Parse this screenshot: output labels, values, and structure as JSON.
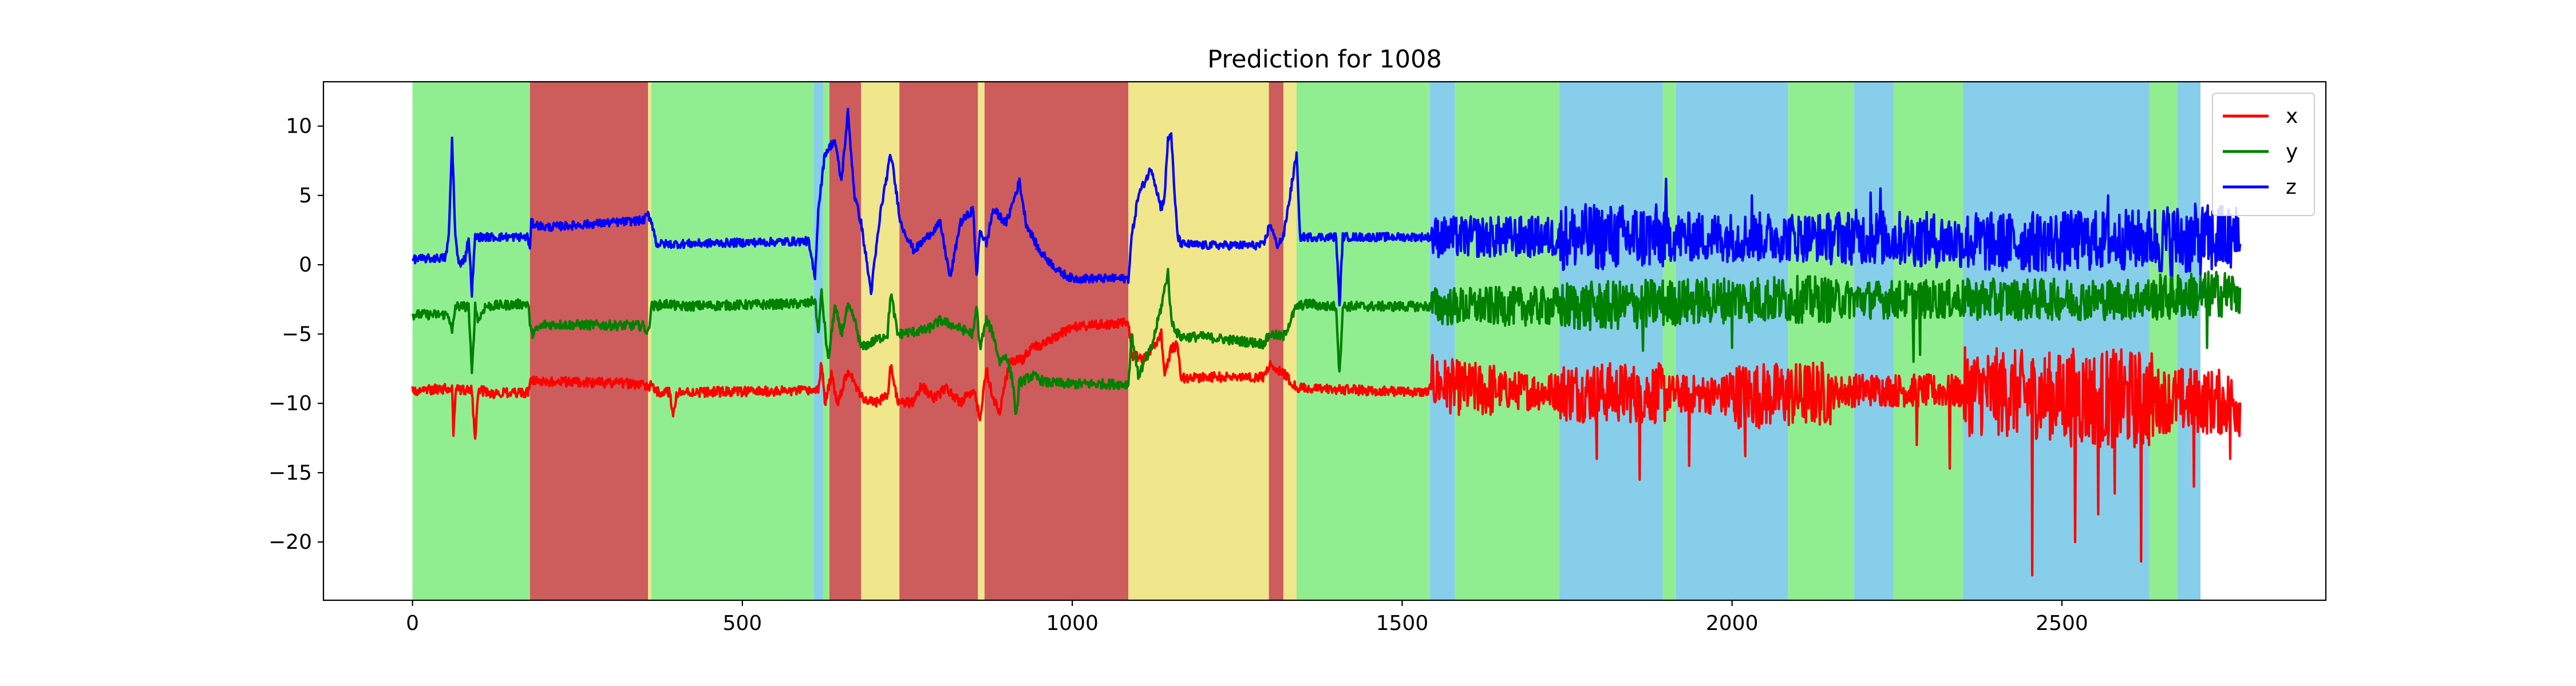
{
  "chart_data": {
    "type": "line",
    "title": "Prediction for 1008",
    "xlabel": "",
    "ylabel": "",
    "xlim": [
      -135,
      2900
    ],
    "ylim": [
      -24.2,
      13.2
    ],
    "xticks": [
      0,
      500,
      1000,
      1500,
      2000,
      2500
    ],
    "yticks": [
      10,
      5,
      0,
      -5,
      -10,
      -15,
      -20
    ],
    "grid": false,
    "legend_position": "top-right",
    "background_segments": [
      {
        "start": 0,
        "end": 178,
        "color": "#90ee90"
      },
      {
        "start": 178,
        "end": 357,
        "color": "#cd5c5c"
      },
      {
        "start": 357,
        "end": 362,
        "color": "#f0e68c"
      },
      {
        "start": 362,
        "end": 608,
        "color": "#90ee90"
      },
      {
        "start": 608,
        "end": 622,
        "color": "#87ceeb"
      },
      {
        "start": 622,
        "end": 632,
        "color": "#90ee90"
      },
      {
        "start": 632,
        "end": 680,
        "color": "#cd5c5c"
      },
      {
        "start": 680,
        "end": 738,
        "color": "#f0e68c"
      },
      {
        "start": 738,
        "end": 857,
        "color": "#cd5c5c"
      },
      {
        "start": 857,
        "end": 867,
        "color": "#f0e68c"
      },
      {
        "start": 867,
        "end": 1085,
        "color": "#cd5c5c"
      },
      {
        "start": 1085,
        "end": 1298,
        "color": "#f0e68c"
      },
      {
        "start": 1298,
        "end": 1320,
        "color": "#cd5c5c"
      },
      {
        "start": 1320,
        "end": 1340,
        "color": "#f0e68c"
      },
      {
        "start": 1340,
        "end": 1542,
        "color": "#90ee90"
      },
      {
        "start": 1542,
        "end": 1580,
        "color": "#87ceeb"
      },
      {
        "start": 1580,
        "end": 1738,
        "color": "#90ee90"
      },
      {
        "start": 1738,
        "end": 1895,
        "color": "#87ceeb"
      },
      {
        "start": 1895,
        "end": 1915,
        "color": "#90ee90"
      },
      {
        "start": 1915,
        "end": 2085,
        "color": "#87ceeb"
      },
      {
        "start": 2085,
        "end": 2185,
        "color": "#90ee90"
      },
      {
        "start": 2185,
        "end": 2245,
        "color": "#87ceeb"
      },
      {
        "start": 2245,
        "end": 2350,
        "color": "#90ee90"
      },
      {
        "start": 2350,
        "end": 2633,
        "color": "#87ceeb"
      },
      {
        "start": 2633,
        "end": 2675,
        "color": "#90ee90"
      },
      {
        "start": 2675,
        "end": 2710,
        "color": "#87ceeb"
      }
    ],
    "x_range": [
      0,
      2770
    ],
    "series": [
      {
        "name": "x",
        "color": "#ff0000",
        "noise": 0.35,
        "points": [
          [
            0,
            -9.1
          ],
          [
            60,
            -8.9
          ],
          [
            62,
            -12
          ],
          [
            66,
            -9
          ],
          [
            90,
            -9
          ],
          [
            95,
            -12.8
          ],
          [
            100,
            -9
          ],
          [
            120,
            -9.3
          ],
          [
            175,
            -9.2
          ],
          [
            180,
            -8.4
          ],
          [
            200,
            -8.4
          ],
          [
            350,
            -8.6
          ],
          [
            357,
            -9
          ],
          [
            362,
            -8.5
          ],
          [
            370,
            -9.2
          ],
          [
            390,
            -9.2
          ],
          [
            395,
            -11
          ],
          [
            400,
            -9.2
          ],
          [
            600,
            -9.1
          ],
          [
            615,
            -9
          ],
          [
            620,
            -7
          ],
          [
            625,
            -10
          ],
          [
            635,
            -8
          ],
          [
            645,
            -10
          ],
          [
            660,
            -7.5
          ],
          [
            680,
            -9.5
          ],
          [
            700,
            -10
          ],
          [
            720,
            -9.4
          ],
          [
            725,
            -7.3
          ],
          [
            735,
            -9.8
          ],
          [
            760,
            -10
          ],
          [
            770,
            -8.7
          ],
          [
            790,
            -9.6
          ],
          [
            810,
            -8.9
          ],
          [
            830,
            -10
          ],
          [
            850,
            -9
          ],
          [
            860,
            -11
          ],
          [
            870,
            -7.5
          ],
          [
            880,
            -9.8
          ],
          [
            890,
            -10.5
          ],
          [
            905,
            -7
          ],
          [
            925,
            -6.8
          ],
          [
            940,
            -5.8
          ],
          [
            950,
            -6
          ],
          [
            980,
            -5
          ],
          [
            1000,
            -4.5
          ],
          [
            1085,
            -4.2
          ],
          [
            1090,
            -6.5
          ],
          [
            1110,
            -6.8
          ],
          [
            1135,
            -5
          ],
          [
            1140,
            -8
          ],
          [
            1150,
            -6
          ],
          [
            1160,
            -5.8
          ],
          [
            1165,
            -8.2
          ],
          [
            1200,
            -8.1
          ],
          [
            1290,
            -8.1
          ],
          [
            1300,
            -7.2
          ],
          [
            1320,
            -7.8
          ],
          [
            1340,
            -8.9
          ],
          [
            1400,
            -9
          ],
          [
            1540,
            -9.2
          ],
          [
            1545,
            -8.5
          ],
          [
            1600,
            -9
          ],
          [
            1800,
            -9.2
          ],
          [
            2000,
            -9.4
          ],
          [
            2100,
            -9.4
          ],
          [
            2200,
            -9
          ],
          [
            2300,
            -9.1
          ],
          [
            2400,
            -9.2
          ],
          [
            2500,
            -9.5
          ],
          [
            2600,
            -9.7
          ],
          [
            2700,
            -9.8
          ],
          [
            2770,
            -10
          ]
        ],
        "bursts": [
          {
            "start": 1545,
            "end": 1640,
            "amp": 2.0
          },
          {
            "start": 1640,
            "end": 1740,
            "amp": 1.4
          },
          {
            "start": 1740,
            "end": 1900,
            "amp": 2.2
          },
          {
            "start": 1900,
            "end": 1990,
            "amp": 1.4
          },
          {
            "start": 1990,
            "end": 2150,
            "amp": 2.4
          },
          {
            "start": 2150,
            "end": 2350,
            "amp": 1.2
          },
          {
            "start": 2350,
            "end": 2500,
            "amp": 3.2
          },
          {
            "start": 2500,
            "end": 2640,
            "amp": 3.6
          },
          {
            "start": 2640,
            "end": 2770,
            "amp": 2.4
          }
        ],
        "spikes": [
          [
            1795,
            -14
          ],
          [
            1860,
            -15.5
          ],
          [
            1935,
            -14.5
          ],
          [
            2020,
            -13.8
          ],
          [
            2280,
            -13
          ],
          [
            2330,
            -14.7
          ],
          [
            2455,
            -22.4
          ],
          [
            2520,
            -20
          ],
          [
            2555,
            -18
          ],
          [
            2580,
            -16.5
          ],
          [
            2620,
            -21.4
          ],
          [
            2700,
            -16
          ],
          [
            2755,
            -14
          ]
        ]
      },
      {
        "name": "y",
        "color": "#008000",
        "noise": 0.35,
        "points": [
          [
            0,
            -3.6
          ],
          [
            55,
            -3.6
          ],
          [
            60,
            -5
          ],
          [
            65,
            -3
          ],
          [
            85,
            -3
          ],
          [
            90,
            -8
          ],
          [
            95,
            -3
          ],
          [
            100,
            -4
          ],
          [
            110,
            -3
          ],
          [
            175,
            -2.8
          ],
          [
            180,
            -5
          ],
          [
            200,
            -4.3
          ],
          [
            350,
            -4.4
          ],
          [
            357,
            -5
          ],
          [
            362,
            -3
          ],
          [
            390,
            -2.8
          ],
          [
            400,
            -3
          ],
          [
            600,
            -2.8
          ],
          [
            610,
            -2.5
          ],
          [
            615,
            -5
          ],
          [
            620,
            -2
          ],
          [
            630,
            -7
          ],
          [
            640,
            -3
          ],
          [
            650,
            -5
          ],
          [
            660,
            -3
          ],
          [
            670,
            -4
          ],
          [
            680,
            -6
          ],
          [
            700,
            -5.5
          ],
          [
            720,
            -5
          ],
          [
            725,
            -2
          ],
          [
            735,
            -5
          ],
          [
            780,
            -4.7
          ],
          [
            800,
            -4
          ],
          [
            830,
            -4.6
          ],
          [
            850,
            -5
          ],
          [
            855,
            -3
          ],
          [
            860,
            -6
          ],
          [
            870,
            -4
          ],
          [
            880,
            -5
          ],
          [
            890,
            -7
          ],
          [
            900,
            -6.5
          ],
          [
            910,
            -8.5
          ],
          [
            915,
            -11
          ],
          [
            920,
            -8.5
          ],
          [
            940,
            -8
          ],
          [
            960,
            -8.5
          ],
          [
            1000,
            -8.6
          ],
          [
            1085,
            -8.6
          ],
          [
            1090,
            -5
          ],
          [
            1100,
            -8
          ],
          [
            1120,
            -6
          ],
          [
            1135,
            -3
          ],
          [
            1145,
            -0.5
          ],
          [
            1150,
            -4
          ],
          [
            1160,
            -5
          ],
          [
            1165,
            -5.2
          ],
          [
            1200,
            -5.2
          ],
          [
            1290,
            -5.7
          ],
          [
            1300,
            -5
          ],
          [
            1320,
            -5.2
          ],
          [
            1340,
            -3
          ],
          [
            1360,
            -2.8
          ],
          [
            1380,
            -3
          ],
          [
            1400,
            -3
          ],
          [
            1405,
            -8
          ],
          [
            1410,
            -3
          ],
          [
            1540,
            -3
          ],
          [
            1600,
            -3
          ],
          [
            1800,
            -3
          ],
          [
            2000,
            -2.5
          ],
          [
            2200,
            -2.5
          ],
          [
            2400,
            -2.5
          ],
          [
            2600,
            -2.5
          ],
          [
            2770,
            -2
          ]
        ],
        "bursts": [
          {
            "start": 1545,
            "end": 1740,
            "amp": 1.4
          },
          {
            "start": 1740,
            "end": 1900,
            "amp": 1.8
          },
          {
            "start": 1900,
            "end": 2150,
            "amp": 1.7
          },
          {
            "start": 2150,
            "end": 2350,
            "amp": 1.4
          },
          {
            "start": 2350,
            "end": 2640,
            "amp": 1.5
          },
          {
            "start": 2640,
            "end": 2770,
            "amp": 1.7
          }
        ],
        "spikes": [
          [
            1865,
            -6.2
          ],
          [
            2000,
            -6
          ],
          [
            2275,
            -7
          ],
          [
            2285,
            -6.5
          ],
          [
            2720,
            -6
          ]
        ]
      },
      {
        "name": "z",
        "color": "#0000ff",
        "noise": 0.3,
        "points": [
          [
            0,
            0.4
          ],
          [
            50,
            0.5
          ],
          [
            55,
            2
          ],
          [
            60,
            9
          ],
          [
            65,
            2
          ],
          [
            70,
            0
          ],
          [
            80,
            0.5
          ],
          [
            85,
            2
          ],
          [
            90,
            -2
          ],
          [
            95,
            2
          ],
          [
            175,
            2
          ],
          [
            178,
            1
          ],
          [
            180,
            3
          ],
          [
            200,
            2.7
          ],
          [
            350,
            3.2
          ],
          [
            357,
            3.6
          ],
          [
            362,
            3.2
          ],
          [
            370,
            1.5
          ],
          [
            400,
            1.5
          ],
          [
            600,
            1.7
          ],
          [
            610,
            -1
          ],
          [
            615,
            4
          ],
          [
            625,
            8
          ],
          [
            640,
            9
          ],
          [
            650,
            6
          ],
          [
            660,
            11
          ],
          [
            670,
            5
          ],
          [
            680,
            3
          ],
          [
            695,
            -2
          ],
          [
            710,
            4
          ],
          [
            725,
            8
          ],
          [
            740,
            3
          ],
          [
            760,
            1
          ],
          [
            780,
            2
          ],
          [
            800,
            3
          ],
          [
            815,
            -1
          ],
          [
            830,
            3
          ],
          [
            850,
            4
          ],
          [
            855,
            -1
          ],
          [
            860,
            2.5
          ],
          [
            870,
            1.5
          ],
          [
            880,
            4
          ],
          [
            900,
            3
          ],
          [
            920,
            6
          ],
          [
            930,
            3
          ],
          [
            950,
            1
          ],
          [
            980,
            -0.5
          ],
          [
            1000,
            -1
          ],
          [
            1085,
            -1
          ],
          [
            1090,
            2
          ],
          [
            1100,
            5
          ],
          [
            1120,
            7
          ],
          [
            1135,
            4
          ],
          [
            1140,
            5
          ],
          [
            1145,
            9
          ],
          [
            1150,
            9.5
          ],
          [
            1155,
            5
          ],
          [
            1160,
            2
          ],
          [
            1165,
            1.5
          ],
          [
            1200,
            1.4
          ],
          [
            1290,
            1.4
          ],
          [
            1300,
            3
          ],
          [
            1310,
            1.4
          ],
          [
            1320,
            2
          ],
          [
            1340,
            8
          ],
          [
            1345,
            2
          ],
          [
            1360,
            2
          ],
          [
            1400,
            2
          ],
          [
            1405,
            -3
          ],
          [
            1410,
            2
          ],
          [
            1540,
            2
          ],
          [
            1600,
            2
          ],
          [
            1800,
            2
          ],
          [
            2000,
            2
          ],
          [
            2200,
            2
          ],
          [
            2400,
            1.6
          ],
          [
            2600,
            1.8
          ],
          [
            2770,
            1.8
          ]
        ],
        "bursts": [
          {
            "start": 1545,
            "end": 1740,
            "amp": 1.5
          },
          {
            "start": 1740,
            "end": 1900,
            "amp": 2.4
          },
          {
            "start": 1900,
            "end": 2150,
            "amp": 1.8
          },
          {
            "start": 2150,
            "end": 2350,
            "amp": 2.0
          },
          {
            "start": 2350,
            "end": 2640,
            "amp": 2.2
          },
          {
            "start": 2640,
            "end": 2770,
            "amp": 2.6
          }
        ],
        "spikes": [
          [
            1900,
            6.2
          ],
          [
            2030,
            5
          ],
          [
            2210,
            5.2
          ],
          [
            2225,
            5.5
          ],
          [
            2570,
            5
          ],
          [
            2740,
            4.2
          ]
        ]
      }
    ]
  }
}
